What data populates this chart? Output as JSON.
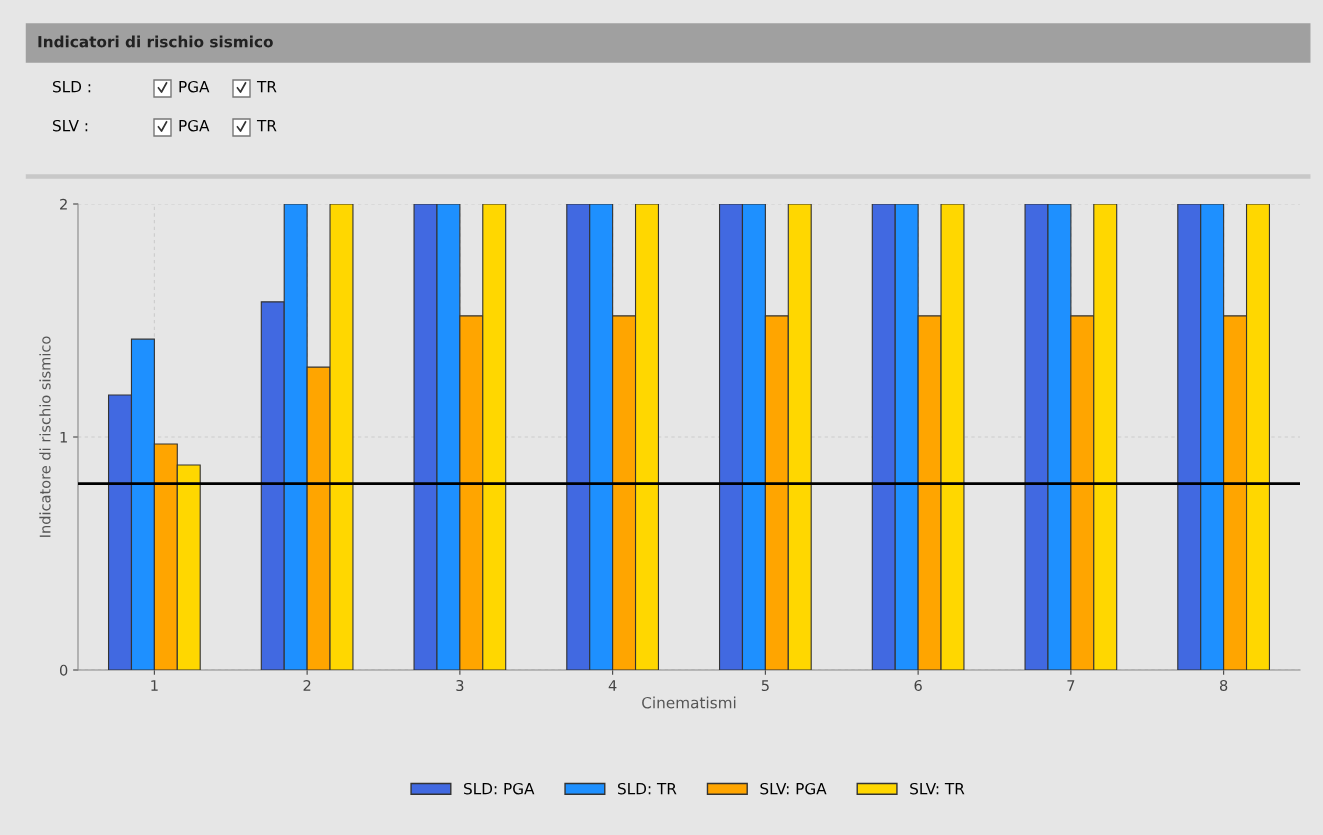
{
  "chart_data": {
    "type": "bar",
    "title": "Indicatori di rischio sismico",
    "xlabel": "Cinematismi",
    "ylabel": "Indicatore di rischio sismico",
    "categories": [
      "1",
      "2",
      "3",
      "4",
      "5",
      "6",
      "7",
      "8"
    ],
    "series": [
      {
        "name": "SLD: PGA",
        "color": "#4169e1",
        "values": [
          1.18,
          1.58,
          2,
          2,
          2,
          2,
          2,
          2
        ]
      },
      {
        "name": "SLD: TR",
        "color": "#1e90ff",
        "values": [
          1.42,
          2,
          2,
          2,
          2,
          2,
          2,
          2
        ]
      },
      {
        "name": "SLV: PGA",
        "color": "#ffa500",
        "values": [
          0.97,
          1.3,
          1.52,
          1.52,
          1.52,
          1.52,
          1.52,
          1.52
        ]
      },
      {
        "name": "SLV: TR",
        "color": "#ffd700",
        "values": [
          0.88,
          2,
          2,
          2,
          2,
          2,
          2,
          2
        ]
      }
    ],
    "ylim": [
      0,
      2
    ],
    "yticks": [
      0,
      1,
      2
    ],
    "grid": true,
    "legend": "bottom",
    "ref_lines": [
      {
        "axis": "y",
        "value": 0.8,
        "color": "#000000",
        "line_style": "solid"
      }
    ],
    "annotations": [
      "SLD :",
      "PGA",
      "TR",
      "SLV :",
      "PGA",
      "TR"
    ]
  }
}
